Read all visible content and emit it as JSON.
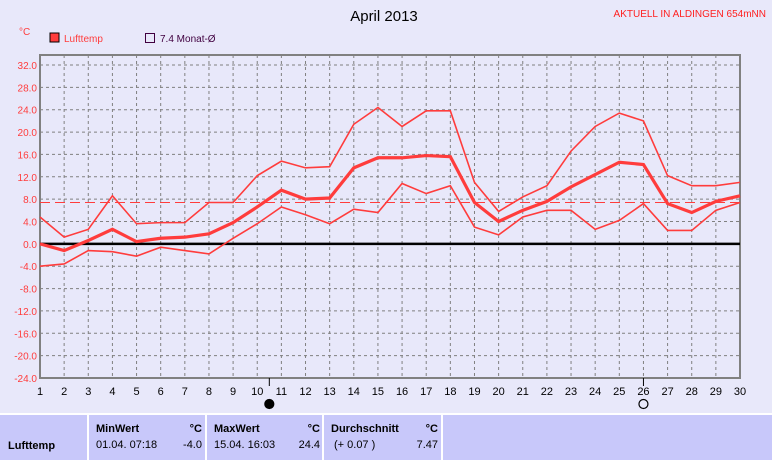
{
  "chart_data": {
    "type": "line",
    "title": "April 2013",
    "subtitle": "AKTUELL IN ALDINGEN 654mNN",
    "ylabel": "°C",
    "ylim": [
      -24,
      32
    ],
    "yticks": [
      "32.0",
      "28.0",
      "24.0",
      "20.0",
      "16.0",
      "12.0",
      "8.0",
      "4.0",
      "0.0",
      "-4.0",
      "-8.0",
      "-12.0",
      "-16.0",
      "-20.0",
      "-24.0"
    ],
    "x": [
      1,
      2,
      3,
      4,
      5,
      6,
      7,
      8,
      9,
      10,
      11,
      12,
      13,
      14,
      15,
      16,
      17,
      18,
      19,
      20,
      21,
      22,
      23,
      24,
      25,
      26,
      27,
      28,
      29,
      30
    ],
    "grid": true,
    "legend": [
      {
        "label": "Lufttemp",
        "color": "#ff3c3c"
      },
      {
        "label": "7.4 Monat-Ø",
        "color": "#ffffff"
      }
    ],
    "monthly_mean": 7.4,
    "series": [
      {
        "values": [
          4.8,
          1.2,
          2.6,
          8.6,
          3.6,
          3.8,
          3.8,
          7.4,
          7.4,
          12.2,
          14.8,
          13.6,
          13.8,
          21.4,
          24.4,
          21.0,
          23.8,
          23.8,
          11.0,
          5.8,
          8.4,
          10.4,
          16.6,
          21.0,
          23.4,
          22.0,
          12.2,
          10.4,
          10.4,
          11.0
        ]
      },
      {
        "values": [
          0,
          -1.2,
          0.6,
          2.6,
          0.4,
          1.0,
          1.2,
          1.8,
          3.8,
          6.6,
          9.6,
          8.0,
          8.2,
          13.6,
          15.4,
          15.4,
          15.8,
          15.6,
          7.4,
          4.0,
          6.0,
          7.6,
          10.2,
          12.4,
          14.6,
          14.2,
          7.2,
          5.6,
          7.6,
          8.6
        ]
      },
      {
        "values": [
          -4.0,
          -3.6,
          -1.2,
          -1.4,
          -2.2,
          -0.6,
          -1.2,
          -1.8,
          1.0,
          3.6,
          6.6,
          5.2,
          3.6,
          6.2,
          5.6,
          10.8,
          9.0,
          10.4,
          3.0,
          1.6,
          4.8,
          6.0,
          6.0,
          2.6,
          4.2,
          7.2,
          2.4,
          2.4,
          6.0,
          7.4
        ]
      }
    ],
    "moon_phases": [
      {
        "day": 10.5,
        "icon": "new-moon-icon"
      },
      {
        "day": 26,
        "icon": "full-moon-icon"
      }
    ]
  },
  "table": {
    "row_label": "Lufttemp",
    "min": {
      "header": "MinWert",
      "unit": "°C",
      "date": "01.04.  07:18",
      "value": "-4.0"
    },
    "max": {
      "header": "MaxWert",
      "unit": "°C",
      "date": "15.04.  16:03",
      "value": "24.4"
    },
    "avg": {
      "header": "Durchschnitt",
      "unit": "°C",
      "note": "(+ 0.07 )",
      "value": "7.47"
    }
  }
}
